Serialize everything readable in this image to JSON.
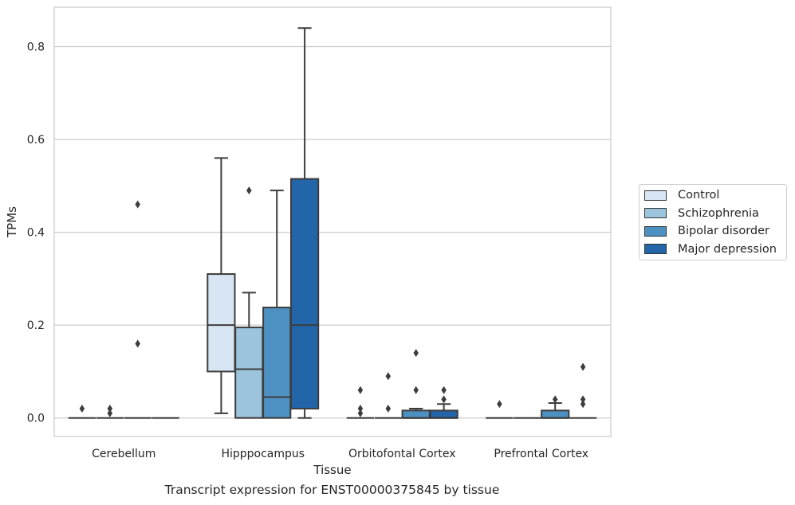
{
  "chart_data": {
    "type": "box",
    "title": "Transcript expression for ENST00000375845 by tissue",
    "xlabel": "Tissue",
    "ylabel": "TPMs",
    "ylim": [
      -0.04,
      0.885
    ],
    "yticks": [
      0.0,
      0.2,
      0.4,
      0.6,
      0.8
    ],
    "ytick_labels": [
      "0.0",
      "0.2",
      "0.4",
      "0.6",
      "0.8"
    ],
    "grid": true,
    "legend_position": "right",
    "categories": [
      "Cerebellum",
      "Hipppocampus",
      "Orbitofontal Cortex",
      "Prefrontal Cortex"
    ],
    "series": [
      {
        "name": "Control",
        "color": "#d8e6f3",
        "boxes": [
          {
            "whislo": 0.0,
            "q1": 0.0,
            "med": 0.0,
            "q3": 0.0,
            "whishi": 0.0,
            "fliers": [
              0.02
            ]
          },
          {
            "whislo": 0.01,
            "q1": 0.1,
            "med": 0.2,
            "q3": 0.31,
            "whishi": 0.56,
            "fliers": []
          },
          {
            "whislo": 0.0,
            "q1": 0.0,
            "med": 0.0,
            "q3": 0.0,
            "whishi": 0.0,
            "fliers": [
              0.06,
              0.02,
              0.01
            ]
          },
          {
            "whislo": 0.0,
            "q1": 0.0,
            "med": 0.0,
            "q3": 0.0,
            "whishi": 0.0,
            "fliers": [
              0.03
            ]
          }
        ]
      },
      {
        "name": "Schizophrenia",
        "color": "#9dc4dd",
        "boxes": [
          {
            "whislo": 0.0,
            "q1": 0.0,
            "med": 0.0,
            "q3": 0.0,
            "whishi": 0.0,
            "fliers": [
              0.02,
              0.01
            ]
          },
          {
            "whislo": 0.0,
            "q1": 0.0,
            "med": 0.105,
            "q3": 0.195,
            "whishi": 0.27,
            "fliers": [
              0.49
            ]
          },
          {
            "whislo": 0.0,
            "q1": 0.0,
            "med": 0.0,
            "q3": 0.0,
            "whishi": 0.0,
            "fliers": [
              0.09,
              0.02
            ]
          },
          {
            "whislo": 0.0,
            "q1": 0.0,
            "med": 0.0,
            "q3": 0.0,
            "whishi": 0.0,
            "fliers": []
          }
        ]
      },
      {
        "name": "Bipolar disorder",
        "color": "#4d91c3",
        "boxes": [
          {
            "whislo": 0.0,
            "q1": 0.0,
            "med": 0.0,
            "q3": 0.0,
            "whishi": 0.0,
            "fliers": [
              0.46,
              0.16
            ]
          },
          {
            "whislo": 0.0,
            "q1": 0.0,
            "med": 0.045,
            "q3": 0.238,
            "whishi": 0.49,
            "fliers": []
          },
          {
            "whislo": 0.0,
            "q1": 0.0,
            "med": 0.0,
            "q3": 0.016,
            "whishi": 0.02,
            "fliers": [
              0.14,
              0.06
            ]
          },
          {
            "whislo": 0.0,
            "q1": 0.0,
            "med": 0.0,
            "q3": 0.016,
            "whishi": 0.032,
            "fliers": [
              0.04
            ]
          }
        ]
      },
      {
        "name": "Major depression",
        "color": "#2265a8",
        "boxes": [
          {
            "whislo": 0.0,
            "q1": 0.0,
            "med": 0.0,
            "q3": 0.0,
            "whishi": 0.0,
            "fliers": []
          },
          {
            "whislo": 0.0,
            "q1": 0.02,
            "med": 0.2,
            "q3": 0.515,
            "whishi": 0.84,
            "fliers": []
          },
          {
            "whislo": 0.0,
            "q1": 0.0,
            "med": 0.0,
            "q3": 0.016,
            "whishi": 0.03,
            "fliers": [
              0.06,
              0.04
            ]
          },
          {
            "whislo": 0.0,
            "q1": 0.0,
            "med": 0.0,
            "q3": 0.0,
            "whishi": 0.0,
            "fliers": [
              0.11,
              0.04,
              0.03
            ]
          }
        ]
      }
    ]
  }
}
